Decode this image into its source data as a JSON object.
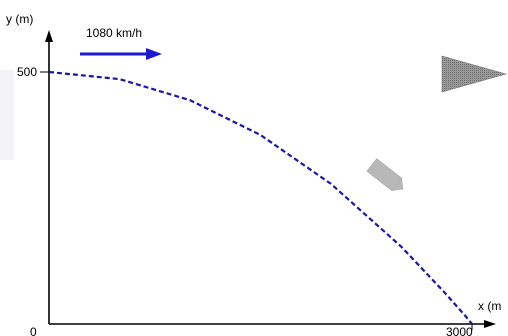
{
  "diagram": {
    "y_axis_label": "y (m)",
    "x_axis_label": "x (m",
    "origin_label": "0",
    "y_mark_label": "500",
    "x_mark_label": "3000",
    "velocity_label": "1080 km/h"
  },
  "chart_data": {
    "type": "line",
    "xlabel": "x (m",
    "ylabel": "y (m)",
    "xlim": [
      0,
      3000
    ],
    "ylim": [
      0,
      500
    ],
    "x_tick_labels": [
      "0",
      "3000"
    ],
    "y_tick_labels": [
      "0",
      "500"
    ],
    "series": [
      {
        "style": "dashed",
        "color": "#1a1aa0",
        "x": [
          0,
          500,
          1000,
          1500,
          2000,
          2500,
          2800,
          2950,
          3000
        ],
        "y": [
          500,
          486,
          444,
          375,
          278,
          153,
          64,
          17,
          0
        ]
      }
    ]
  },
  "colors": {
    "trajectory": "#1a1aa0",
    "arrow": "#1a1ad0",
    "axes": "#000000",
    "projectile": "#b8b8b8",
    "launcher": "#8c8c8c",
    "backdrop": "#f3f3f8"
  }
}
